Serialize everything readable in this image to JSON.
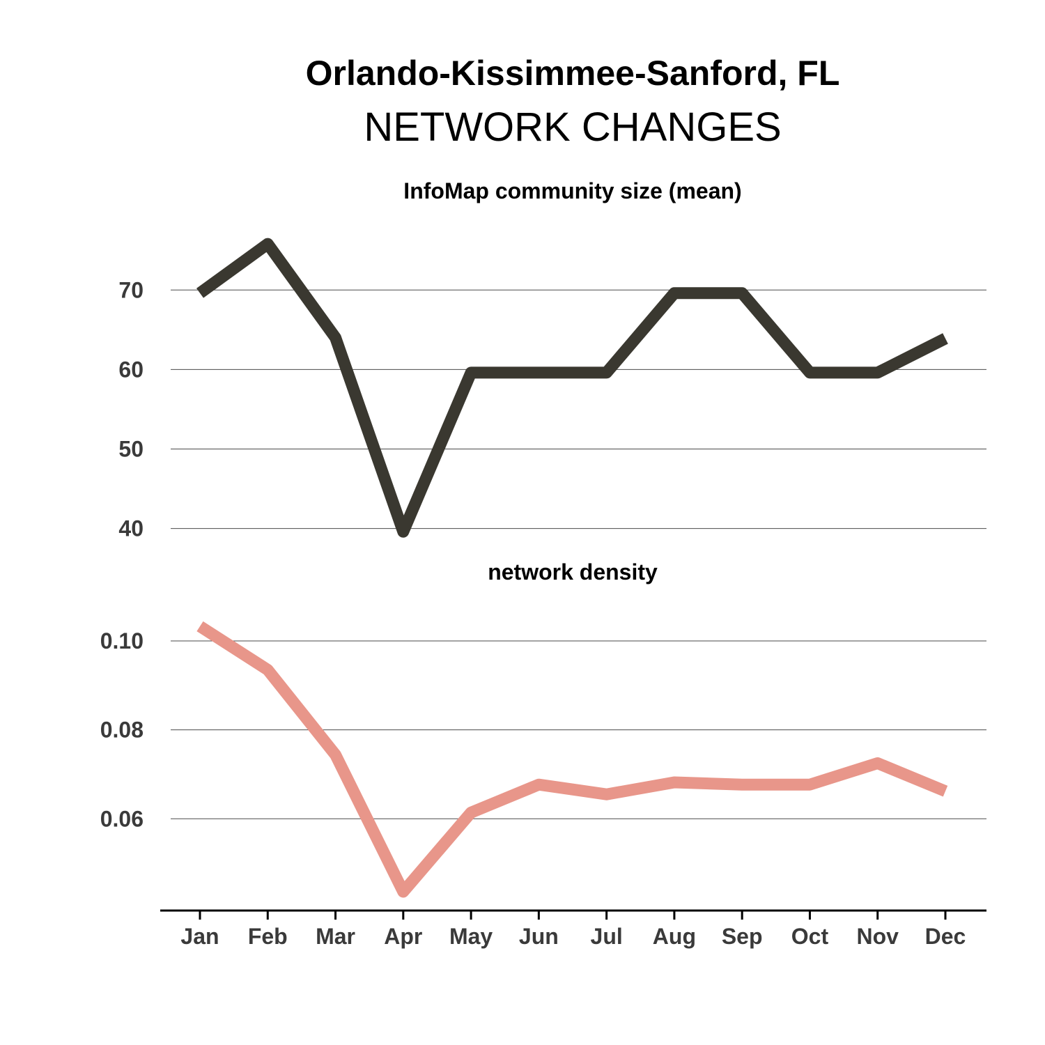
{
  "title": "Orlando-Kissimmee-Sanford, FL",
  "subtitle": "NETWORK CHANGES",
  "chart_data": [
    {
      "type": "line",
      "title": "InfoMap community size (mean)",
      "categories": [
        "Jan",
        "Feb",
        "Mar",
        "Apr",
        "May",
        "Jun",
        "Jul",
        "Aug",
        "Sep",
        "Oct",
        "Nov",
        "Dec"
      ],
      "series": [
        {
          "color": "#3a3830",
          "values": [
            69.6,
            75.8,
            64.0,
            39.6,
            59.6,
            59.6,
            59.6,
            69.6,
            69.6,
            59.6,
            59.6,
            63.9
          ]
        }
      ],
      "yticks": [
        40,
        50,
        60,
        70
      ],
      "ylim": [
        39,
        78
      ],
      "grid": true
    },
    {
      "type": "line",
      "title": "network density",
      "categories": [
        "Jan",
        "Feb",
        "Mar",
        "Apr",
        "May",
        "Jun",
        "Jul",
        "Aug",
        "Sep",
        "Oct",
        "Nov",
        "Dec"
      ],
      "series": [
        {
          "color": "#e8968a",
          "values": [
            0.1033,
            0.0935,
            0.0744,
            0.0436,
            0.0614,
            0.0677,
            0.0655,
            0.0682,
            0.0677,
            0.0677,
            0.0725,
            0.0662
          ]
        }
      ],
      "yticks": [
        "0.06",
        "0.08",
        "0.10"
      ],
      "ylim": [
        0.0414,
        0.1069
      ],
      "grid": true
    }
  ]
}
